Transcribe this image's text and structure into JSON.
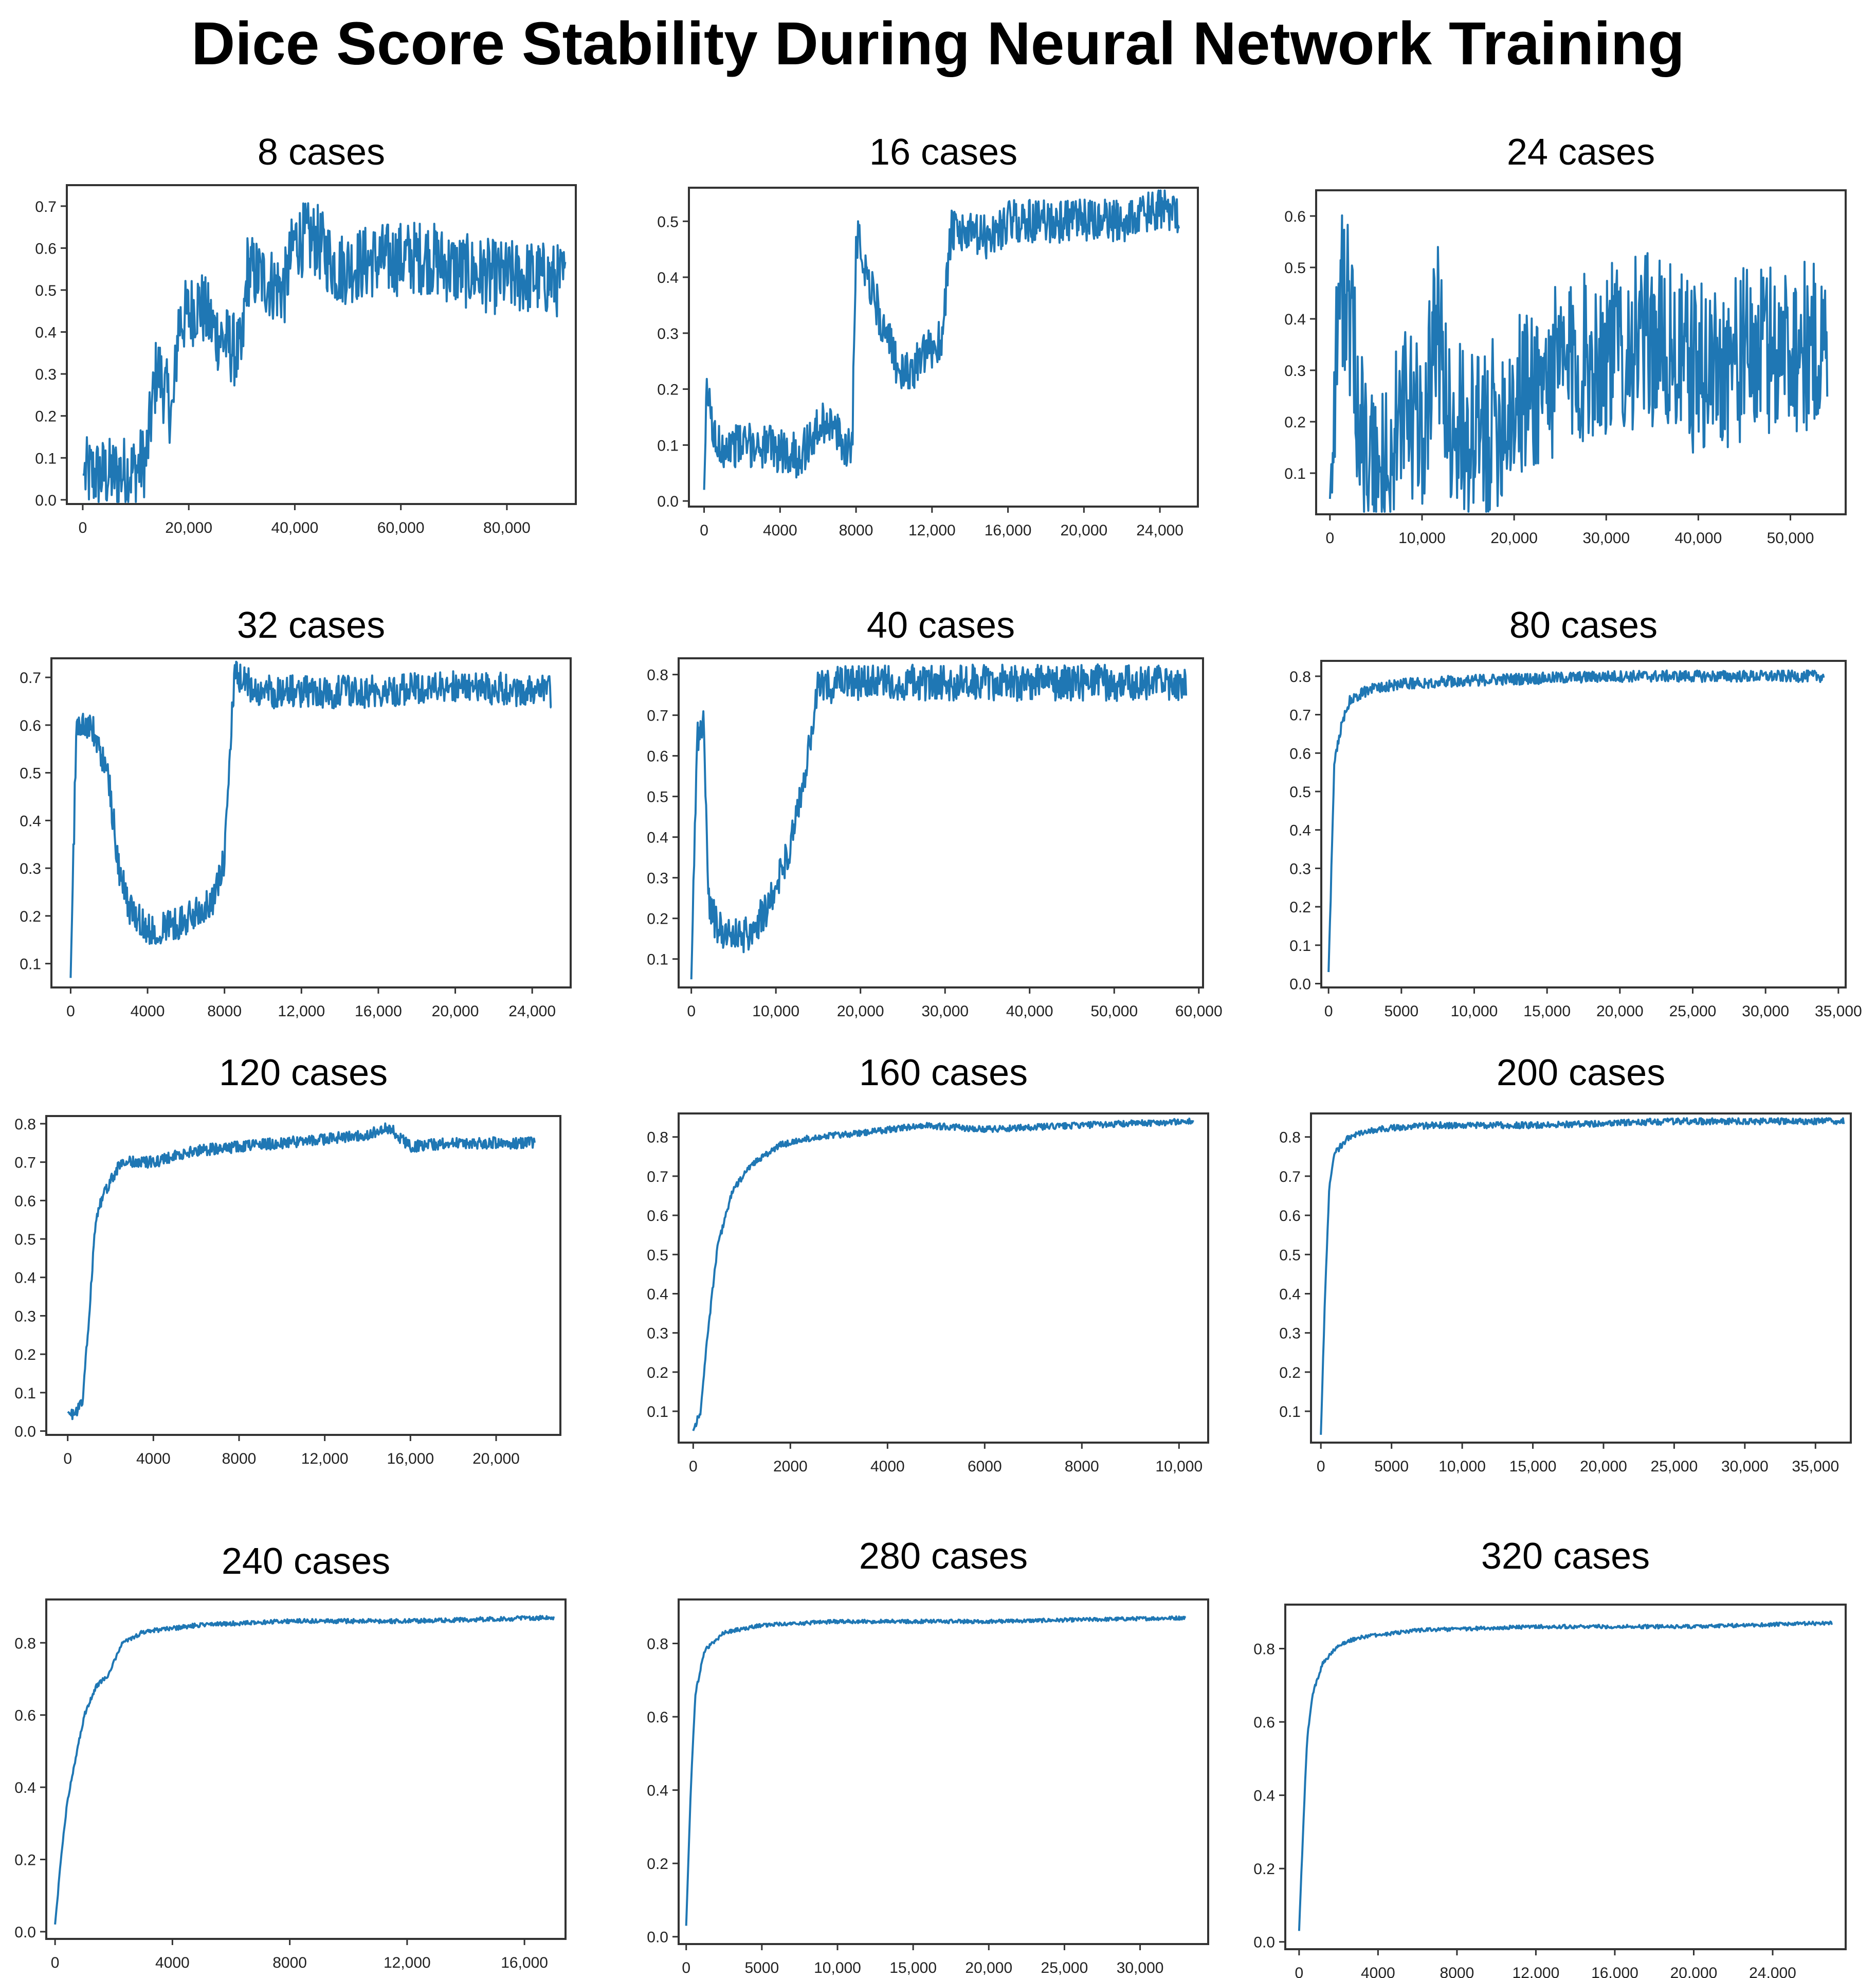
{
  "title": "Dice Score Stability During Neural Network Training",
  "colors": {
    "line": "#1f77b4",
    "axis": "#333333",
    "background": "#ffffff"
  },
  "chart_data": [
    {
      "type": "line",
      "title": "8 cases",
      "xlim": [
        -3000,
        93000
      ],
      "ylim": [
        -0.01,
        0.75
      ],
      "xticks": [
        0,
        20000,
        40000,
        60000,
        80000
      ],
      "xtick_labels": [
        "0",
        "20,000",
        "40,000",
        "60,000",
        "80,000"
      ],
      "yticks": [
        0.0,
        0.1,
        0.2,
        0.3,
        0.4,
        0.5,
        0.6,
        0.7
      ],
      "ytick_labels": [
        "0.0",
        "0.1",
        "0.2",
        "0.3",
        "0.4",
        "0.5",
        "0.6",
        "0.7"
      ],
      "x_end": 91000,
      "noise": 0.09,
      "points": [
        [
          0,
          0.06
        ],
        [
          5000,
          0.06
        ],
        [
          10000,
          0.07
        ],
        [
          12000,
          0.1
        ],
        [
          14000,
          0.32
        ],
        [
          17000,
          0.2
        ],
        [
          18000,
          0.42
        ],
        [
          22000,
          0.47
        ],
        [
          25000,
          0.4
        ],
        [
          30000,
          0.34
        ],
        [
          31000,
          0.55
        ],
        [
          35000,
          0.52
        ],
        [
          38000,
          0.5
        ],
        [
          40000,
          0.62
        ],
        [
          44000,
          0.62
        ],
        [
          48000,
          0.55
        ],
        [
          55000,
          0.57
        ],
        [
          65000,
          0.58
        ],
        [
          70000,
          0.55
        ],
        [
          78000,
          0.53
        ],
        [
          85000,
          0.53
        ],
        [
          91000,
          0.52
        ]
      ]
    },
    {
      "type": "line",
      "title": "16 cases",
      "xlim": [
        -800,
        26000
      ],
      "ylim": [
        -0.01,
        0.56
      ],
      "xticks": [
        0,
        4000,
        8000,
        12000,
        16000,
        20000,
        24000
      ],
      "xtick_labels": [
        "0",
        "4000",
        "8000",
        "12,000",
        "16,000",
        "20,000",
        "24,000"
      ],
      "yticks": [
        0.0,
        0.1,
        0.2,
        0.3,
        0.4,
        0.5
      ],
      "ytick_labels": [
        "0.0",
        "0.1",
        "0.2",
        "0.3",
        "0.4",
        "0.5"
      ],
      "x_end": 25000,
      "noise": 0.04,
      "points": [
        [
          0,
          0.02
        ],
        [
          150,
          0.2
        ],
        [
          600,
          0.1
        ],
        [
          3000,
          0.1
        ],
        [
          5000,
          0.08
        ],
        [
          6500,
          0.15
        ],
        [
          7300,
          0.1
        ],
        [
          7800,
          0.1
        ],
        [
          8000,
          0.48
        ],
        [
          8500,
          0.42
        ],
        [
          9500,
          0.3
        ],
        [
          10500,
          0.22
        ],
        [
          12500,
          0.29
        ],
        [
          13000,
          0.48
        ],
        [
          15000,
          0.47
        ],
        [
          16000,
          0.5
        ],
        [
          20000,
          0.5
        ],
        [
          22000,
          0.5
        ],
        [
          24000,
          0.52
        ],
        [
          25000,
          0.52
        ]
      ]
    },
    {
      "type": "line",
      "title": "24 cases",
      "xlim": [
        -1500,
        56000
      ],
      "ylim": [
        0.02,
        0.65
      ],
      "xticks": [
        0,
        10000,
        20000,
        30000,
        40000,
        50000
      ],
      "xtick_labels": [
        "0",
        "10,000",
        "20,000",
        "30,000",
        "40,000",
        "50,000"
      ],
      "yticks": [
        0.1,
        0.2,
        0.3,
        0.4,
        0.5,
        0.6
      ],
      "ytick_labels": [
        "0.1",
        "0.2",
        "0.3",
        "0.4",
        "0.5",
        "0.6"
      ],
      "x_end": 54000,
      "noise": 0.17,
      "points": [
        [
          0,
          0.05
        ],
        [
          800,
          0.4
        ],
        [
          1500,
          0.48
        ],
        [
          3000,
          0.25
        ],
        [
          4000,
          0.12
        ],
        [
          6000,
          0.1
        ],
        [
          8000,
          0.22
        ],
        [
          10000,
          0.18
        ],
        [
          11500,
          0.4
        ],
        [
          13000,
          0.2
        ],
        [
          16000,
          0.16
        ],
        [
          18000,
          0.2
        ],
        [
          20000,
          0.24
        ],
        [
          25000,
          0.3
        ],
        [
          30000,
          0.34
        ],
        [
          35000,
          0.36
        ],
        [
          40000,
          0.3
        ],
        [
          45000,
          0.33
        ],
        [
          50000,
          0.35
        ],
        [
          54000,
          0.34
        ]
      ]
    },
    {
      "type": "line",
      "title": "32 cases",
      "xlim": [
        -1000,
        26000
      ],
      "ylim": [
        0.05,
        0.74
      ],
      "xticks": [
        0,
        4000,
        8000,
        12000,
        16000,
        20000,
        24000
      ],
      "xtick_labels": [
        "0",
        "4000",
        "8000",
        "12,000",
        "16,000",
        "20,000",
        "24,000"
      ],
      "yticks": [
        0.1,
        0.2,
        0.3,
        0.4,
        0.5,
        0.6,
        0.7
      ],
      "ytick_labels": [
        "0.1",
        "0.2",
        "0.3",
        "0.4",
        "0.5",
        "0.6",
        "0.7"
      ],
      "x_end": 25000,
      "noise": 0.035,
      "points": [
        [
          0,
          0.07
        ],
        [
          300,
          0.6
        ],
        [
          1000,
          0.6
        ],
        [
          1500,
          0.55
        ],
        [
          2000,
          0.48
        ],
        [
          2500,
          0.3
        ],
        [
          3000,
          0.22
        ],
        [
          4000,
          0.17
        ],
        [
          6000,
          0.19
        ],
        [
          7500,
          0.24
        ],
        [
          8000,
          0.32
        ],
        [
          8500,
          0.7
        ],
        [
          10000,
          0.67
        ],
        [
          15000,
          0.67
        ],
        [
          20000,
          0.68
        ],
        [
          25000,
          0.67
        ]
      ]
    },
    {
      "type": "line",
      "title": "40 cases",
      "xlim": [
        -1500,
        60500
      ],
      "ylim": [
        0.03,
        0.84
      ],
      "xticks": [
        0,
        10000,
        20000,
        30000,
        40000,
        50000,
        60000
      ],
      "xtick_labels": [
        "0",
        "10,000",
        "20,000",
        "30,000",
        "40,000",
        "50,000",
        "60,000"
      ],
      "yticks": [
        0.1,
        0.2,
        0.3,
        0.4,
        0.5,
        0.6,
        0.7,
        0.8
      ],
      "ytick_labels": [
        "0.1",
        "0.2",
        "0.3",
        "0.4",
        "0.5",
        "0.6",
        "0.7",
        "0.8"
      ],
      "x_end": 58500,
      "noise": 0.045,
      "points": [
        [
          0,
          0.05
        ],
        [
          700,
          0.65
        ],
        [
          1500,
          0.68
        ],
        [
          2000,
          0.25
        ],
        [
          3000,
          0.18
        ],
        [
          6000,
          0.15
        ],
        [
          9000,
          0.22
        ],
        [
          12000,
          0.4
        ],
        [
          14000,
          0.62
        ],
        [
          15000,
          0.77
        ],
        [
          20000,
          0.78
        ],
        [
          30000,
          0.78
        ],
        [
          40000,
          0.78
        ],
        [
          50000,
          0.78
        ],
        [
          58500,
          0.78
        ]
      ]
    },
    {
      "type": "line",
      "title": "80 cases",
      "xlim": [
        -500,
        35500
      ],
      "ylim": [
        -0.01,
        0.84
      ],
      "xticks": [
        0,
        5000,
        10000,
        15000,
        20000,
        25000,
        30000,
        35000
      ],
      "xtick_labels": [
        "0",
        "5000",
        "10,000",
        "15,000",
        "20,000",
        "25,000",
        "30,000",
        "35,000"
      ],
      "yticks": [
        0.0,
        0.1,
        0.2,
        0.3,
        0.4,
        0.5,
        0.6,
        0.7,
        0.8
      ],
      "ytick_labels": [
        "0.0",
        "0.1",
        "0.2",
        "0.3",
        "0.4",
        "0.5",
        "0.6",
        "0.7",
        "0.8"
      ],
      "x_end": 34000,
      "noise": 0.015,
      "points": [
        [
          0,
          0.03
        ],
        [
          200,
          0.3
        ],
        [
          400,
          0.58
        ],
        [
          800,
          0.66
        ],
        [
          1500,
          0.74
        ],
        [
          3000,
          0.77
        ],
        [
          5000,
          0.78
        ],
        [
          10000,
          0.79
        ],
        [
          20000,
          0.8
        ],
        [
          30000,
          0.8
        ],
        [
          34000,
          0.8
        ]
      ]
    },
    {
      "type": "line",
      "title": "120 cases",
      "xlim": [
        -1000,
        23000
      ],
      "ylim": [
        -0.01,
        0.82
      ],
      "xticks": [
        0,
        4000,
        8000,
        12000,
        16000,
        20000
      ],
      "xtick_labels": [
        "0",
        "4000",
        "8000",
        "12,000",
        "16,000",
        "20,000"
      ],
      "yticks": [
        0.0,
        0.1,
        0.2,
        0.3,
        0.4,
        0.5,
        0.6,
        0.7,
        0.8
      ],
      "ytick_labels": [
        "0.0",
        "0.1",
        "0.2",
        "0.3",
        "0.4",
        "0.5",
        "0.6",
        "0.7",
        "0.8"
      ],
      "x_end": 21800,
      "noise": 0.015,
      "points": [
        [
          0,
          0.05
        ],
        [
          300,
          0.04
        ],
        [
          700,
          0.08
        ],
        [
          1000,
          0.3
        ],
        [
          1300,
          0.55
        ],
        [
          1700,
          0.62
        ],
        [
          2500,
          0.7
        ],
        [
          4000,
          0.7
        ],
        [
          6000,
          0.73
        ],
        [
          10000,
          0.75
        ],
        [
          14000,
          0.77
        ],
        [
          15000,
          0.79
        ],
        [
          16000,
          0.74
        ],
        [
          18000,
          0.75
        ],
        [
          21800,
          0.75
        ]
      ]
    },
    {
      "type": "line",
      "title": "160 cases",
      "xlim": [
        -300,
        10600
      ],
      "ylim": [
        0.02,
        0.86
      ],
      "xticks": [
        0,
        2000,
        4000,
        6000,
        8000,
        10000
      ],
      "xtick_labels": [
        "0",
        "2000",
        "4000",
        "6000",
        "8000",
        "10,000"
      ],
      "yticks": [
        0.1,
        0.2,
        0.3,
        0.4,
        0.5,
        0.6,
        0.7,
        0.8
      ],
      "ytick_labels": [
        "0.1",
        "0.2",
        "0.3",
        "0.4",
        "0.5",
        "0.6",
        "0.7",
        "0.8"
      ],
      "x_end": 10300,
      "noise": 0.008,
      "points": [
        [
          0,
          0.05
        ],
        [
          150,
          0.1
        ],
        [
          300,
          0.3
        ],
        [
          500,
          0.52
        ],
        [
          800,
          0.66
        ],
        [
          1200,
          0.73
        ],
        [
          1800,
          0.78
        ],
        [
          2500,
          0.8
        ],
        [
          3500,
          0.81
        ],
        [
          4700,
          0.83
        ],
        [
          6000,
          0.82
        ],
        [
          8000,
          0.83
        ],
        [
          10300,
          0.84
        ]
      ]
    },
    {
      "type": "line",
      "title": "200 cases",
      "xlim": [
        -700,
        37500
      ],
      "ylim": [
        0.02,
        0.86
      ],
      "xticks": [
        0,
        5000,
        10000,
        15000,
        20000,
        25000,
        30000,
        35000
      ],
      "xtick_labels": [
        "0",
        "5000",
        "10,000",
        "15,000",
        "20,000",
        "25,000",
        "30,000",
        "35,000"
      ],
      "yticks": [
        0.1,
        0.2,
        0.3,
        0.4,
        0.5,
        0.6,
        0.7,
        0.8
      ],
      "ytick_labels": [
        "0.1",
        "0.2",
        "0.3",
        "0.4",
        "0.5",
        "0.6",
        "0.7",
        "0.8"
      ],
      "x_end": 37000,
      "noise": 0.008,
      "points": [
        [
          0,
          0.04
        ],
        [
          300,
          0.4
        ],
        [
          600,
          0.68
        ],
        [
          1000,
          0.76
        ],
        [
          2000,
          0.8
        ],
        [
          4000,
          0.82
        ],
        [
          8000,
          0.83
        ],
        [
          15000,
          0.83
        ],
        [
          25000,
          0.84
        ],
        [
          37000,
          0.84
        ]
      ]
    },
    {
      "type": "line",
      "title": "240 cases",
      "xlim": [
        -300,
        17400
      ],
      "ylim": [
        -0.02,
        0.92
      ],
      "xticks": [
        0,
        4000,
        8000,
        12000,
        16000
      ],
      "xtick_labels": [
        "0",
        "4000",
        "8000",
        "12,000",
        "16,000"
      ],
      "yticks": [
        0.0,
        0.2,
        0.4,
        0.6,
        0.8
      ],
      "ytick_labels": [
        "0.0",
        "0.2",
        "0.4",
        "0.6",
        "0.8"
      ],
      "x_end": 17000,
      "noise": 0.006,
      "points": [
        [
          0,
          0.02
        ],
        [
          200,
          0.2
        ],
        [
          400,
          0.35
        ],
        [
          700,
          0.48
        ],
        [
          1000,
          0.6
        ],
        [
          1400,
          0.68
        ],
        [
          1800,
          0.71
        ],
        [
          2300,
          0.8
        ],
        [
          3000,
          0.83
        ],
        [
          5000,
          0.85
        ],
        [
          8000,
          0.86
        ],
        [
          12000,
          0.86
        ],
        [
          17000,
          0.87
        ]
      ]
    },
    {
      "type": "line",
      "title": "280 cases",
      "xlim": [
        -500,
        34500
      ],
      "ylim": [
        -0.02,
        0.92
      ],
      "xticks": [
        0,
        5000,
        10000,
        15000,
        20000,
        25000,
        30000
      ],
      "xtick_labels": [
        "0",
        "5000",
        "10,000",
        "15,000",
        "20,000",
        "25,000",
        "30,000"
      ],
      "yticks": [
        0.0,
        0.2,
        0.4,
        0.6,
        0.8
      ],
      "ytick_labels": [
        "0.0",
        "0.2",
        "0.4",
        "0.6",
        "0.8"
      ],
      "x_end": 33000,
      "noise": 0.005,
      "points": [
        [
          0,
          0.03
        ],
        [
          300,
          0.4
        ],
        [
          600,
          0.66
        ],
        [
          1200,
          0.78
        ],
        [
          2500,
          0.83
        ],
        [
          5000,
          0.85
        ],
        [
          10000,
          0.86
        ],
        [
          20000,
          0.86
        ],
        [
          33000,
          0.87
        ]
      ]
    },
    {
      "type": "line",
      "title": "320 cases",
      "xlim": [
        -700,
        27700
      ],
      "ylim": [
        -0.02,
        0.92
      ],
      "xticks": [
        0,
        4000,
        8000,
        12000,
        16000,
        20000,
        24000
      ],
      "xtick_labels": [
        "0",
        "4000",
        "8000",
        "12,000",
        "16,000",
        "20,000",
        "24,000"
      ],
      "yticks": [
        0.0,
        0.2,
        0.4,
        0.6,
        0.8
      ],
      "ytick_labels": [
        "0.0",
        "0.2",
        "0.4",
        "0.6",
        "0.8"
      ],
      "x_end": 27000,
      "noise": 0.005,
      "points": [
        [
          0,
          0.03
        ],
        [
          200,
          0.3
        ],
        [
          400,
          0.55
        ],
        [
          700,
          0.68
        ],
        [
          1200,
          0.76
        ],
        [
          2000,
          0.81
        ],
        [
          3000,
          0.83
        ],
        [
          6000,
          0.85
        ],
        [
          12000,
          0.86
        ],
        [
          20000,
          0.86
        ],
        [
          27000,
          0.87
        ]
      ]
    }
  ]
}
